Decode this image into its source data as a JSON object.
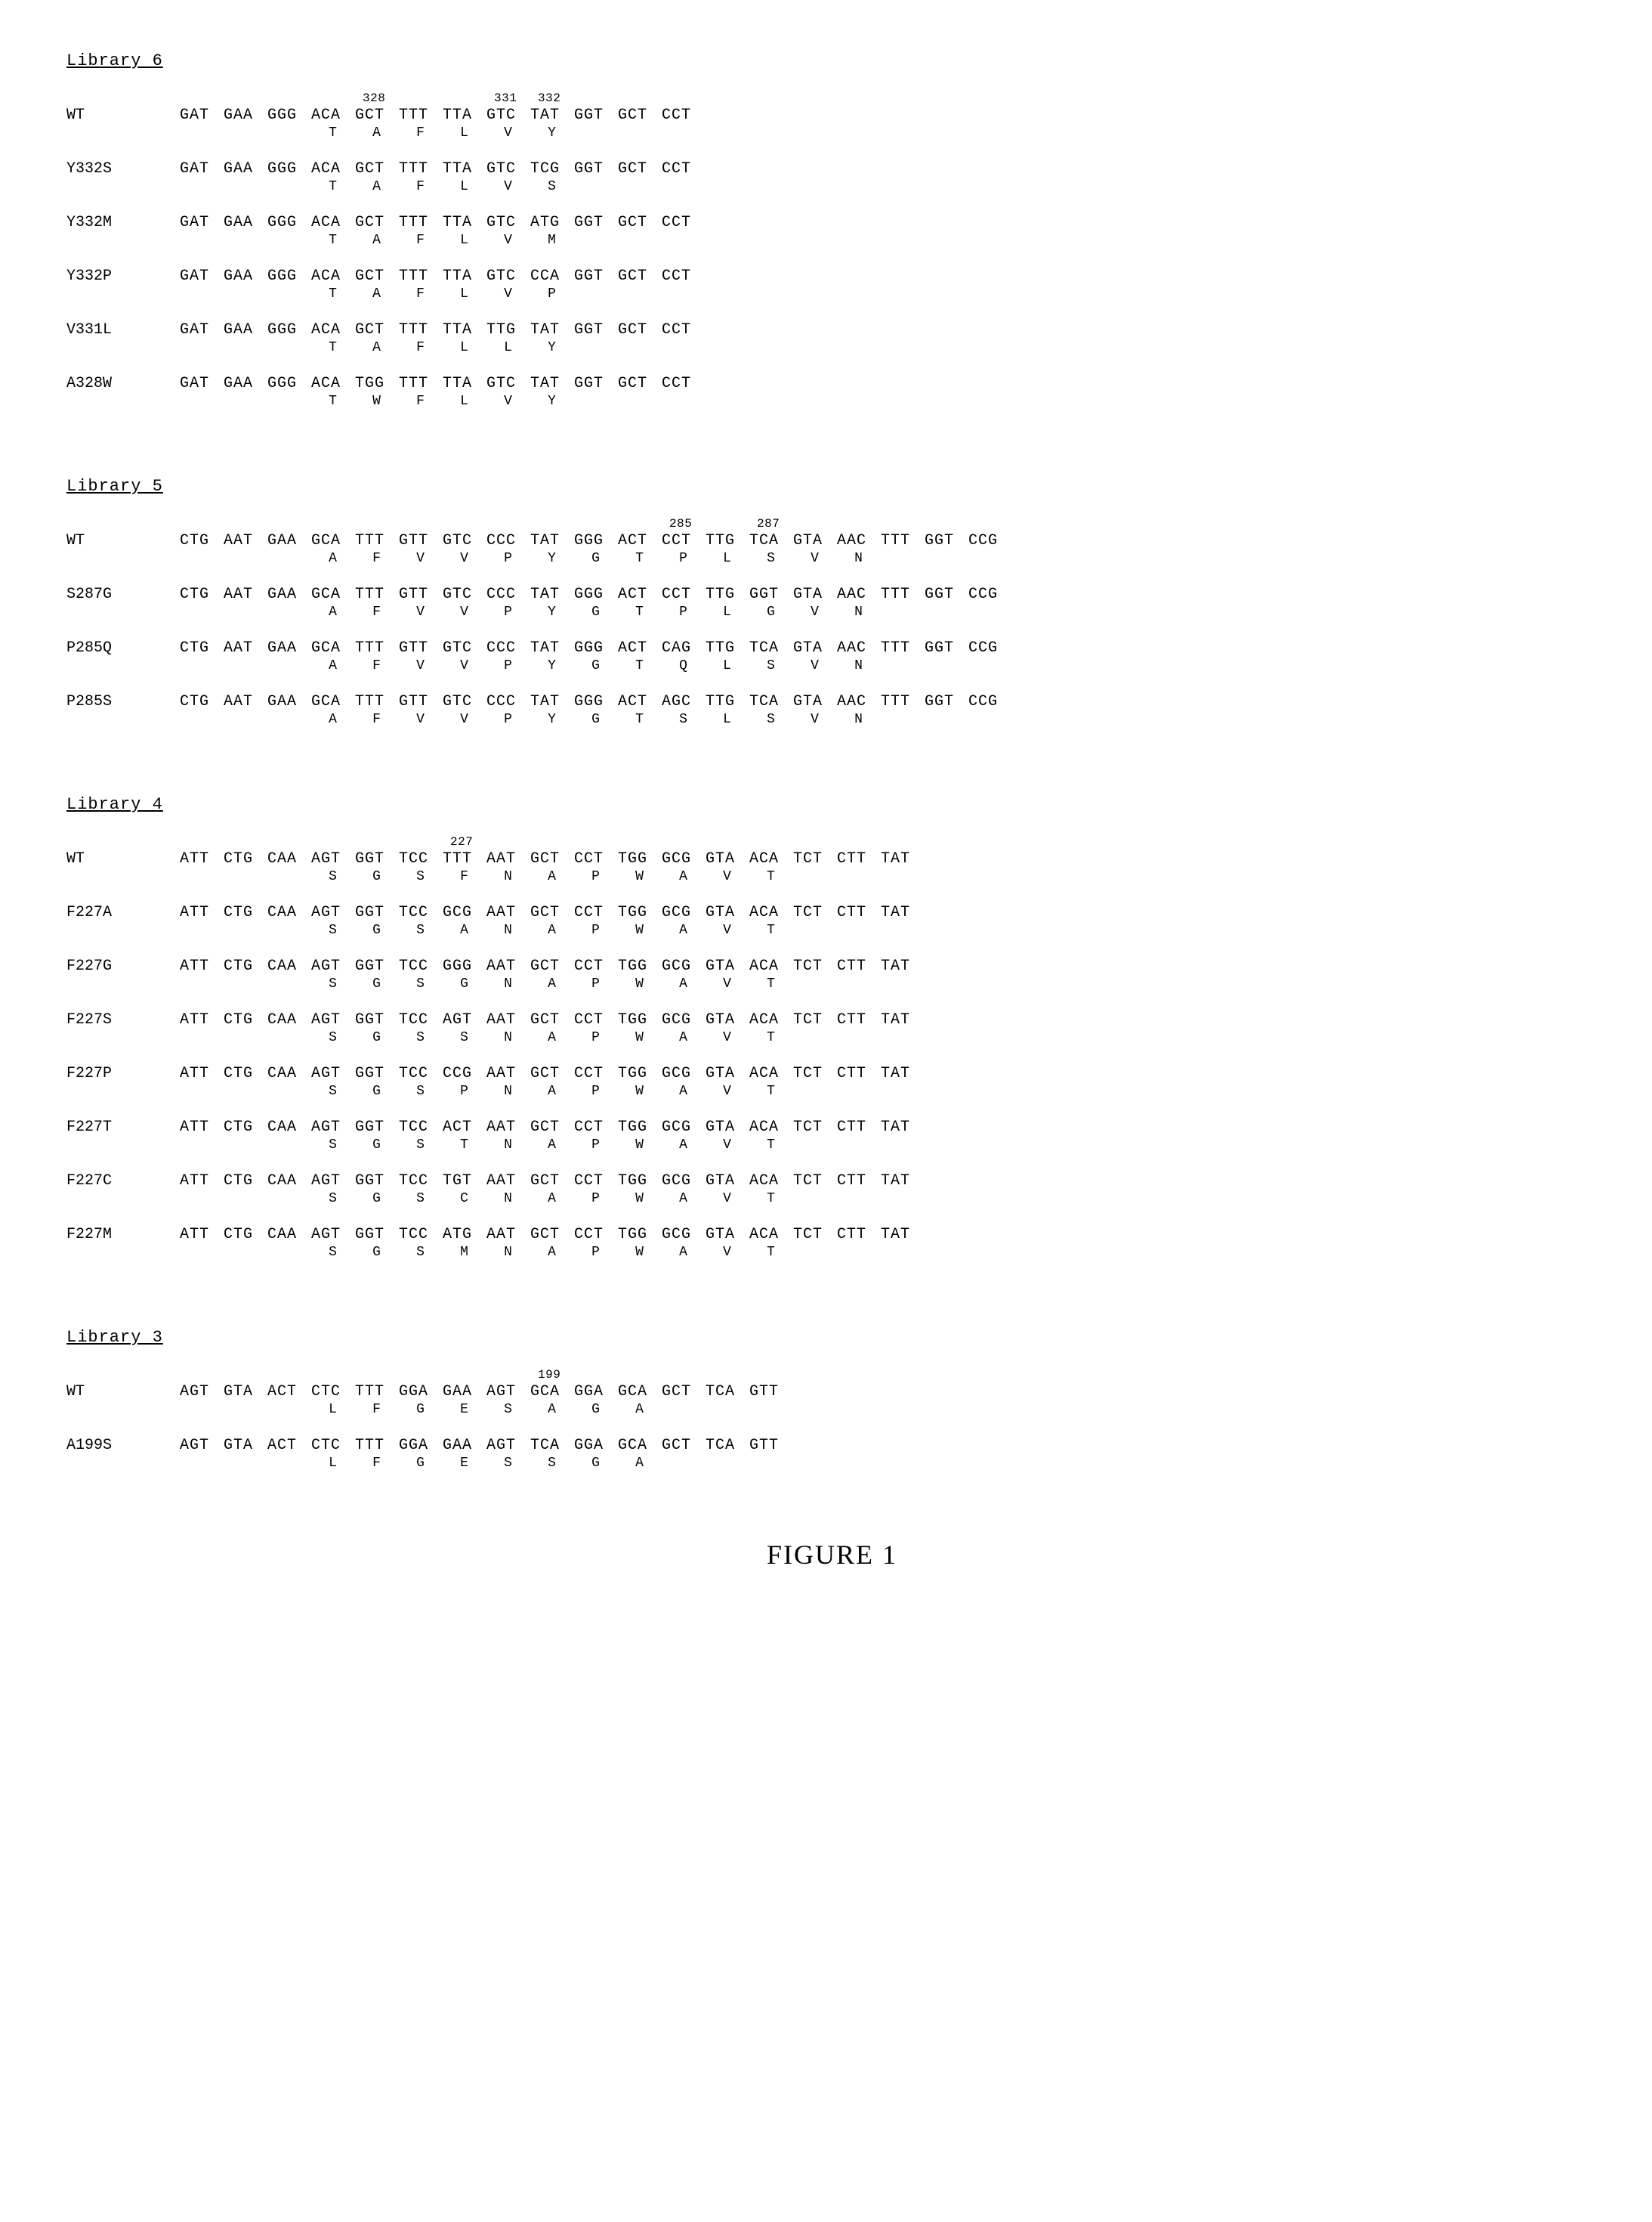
{
  "figure_caption": "FIGURE 1",
  "libraries": [
    {
      "title": "Library 6",
      "position_marks": [
        {
          "label": "328",
          "codon_index": 4
        },
        {
          "label": "331",
          "codon_index": 7
        },
        {
          "label": "332",
          "codon_index": 8
        }
      ],
      "aa_start_index": 3,
      "entries": [
        {
          "label": "WT",
          "codons": [
            "GAT",
            "GAA",
            "GGG",
            "ACA",
            "GCT",
            "TTT",
            "TTA",
            "GTC",
            "TAT",
            "GGT",
            "GCT",
            "CCT"
          ],
          "aas": [
            "T",
            "A",
            "F",
            "L",
            "V",
            "Y"
          ]
        },
        {
          "label": "Y332S",
          "codons": [
            "GAT",
            "GAA",
            "GGG",
            "ACA",
            "GCT",
            "TTT",
            "TTA",
            "GTC",
            "TCG",
            "GGT",
            "GCT",
            "CCT"
          ],
          "aas": [
            "T",
            "A",
            "F",
            "L",
            "V",
            "S"
          ]
        },
        {
          "label": "Y332M",
          "codons": [
            "GAT",
            "GAA",
            "GGG",
            "ACA",
            "GCT",
            "TTT",
            "TTA",
            "GTC",
            "ATG",
            "GGT",
            "GCT",
            "CCT"
          ],
          "aas": [
            "T",
            "A",
            "F",
            "L",
            "V",
            "M"
          ]
        },
        {
          "label": "Y332P",
          "codons": [
            "GAT",
            "GAA",
            "GGG",
            "ACA",
            "GCT",
            "TTT",
            "TTA",
            "GTC",
            "CCA",
            "GGT",
            "GCT",
            "CCT"
          ],
          "aas": [
            "T",
            "A",
            "F",
            "L",
            "V",
            "P"
          ]
        },
        {
          "label": "V331L",
          "codons": [
            "GAT",
            "GAA",
            "GGG",
            "ACA",
            "GCT",
            "TTT",
            "TTA",
            "TTG",
            "TAT",
            "GGT",
            "GCT",
            "CCT"
          ],
          "aas": [
            "T",
            "A",
            "F",
            "L",
            "L",
            "Y"
          ]
        },
        {
          "label": "A328W",
          "codons": [
            "GAT",
            "GAA",
            "GGG",
            "ACA",
            "TGG",
            "TTT",
            "TTA",
            "GTC",
            "TAT",
            "GGT",
            "GCT",
            "CCT"
          ],
          "aas": [
            "T",
            "W",
            "F",
            "L",
            "V",
            "Y"
          ]
        }
      ]
    },
    {
      "title": "Library 5",
      "position_marks": [
        {
          "label": "285",
          "codon_index": 11
        },
        {
          "label": "287",
          "codon_index": 13
        }
      ],
      "aa_start_index": 3,
      "entries": [
        {
          "label": "WT",
          "codons": [
            "CTG",
            "AAT",
            "GAA",
            "GCA",
            "TTT",
            "GTT",
            "GTC",
            "CCC",
            "TAT",
            "GGG",
            "ACT",
            "CCT",
            "TTG",
            "TCA",
            "GTA",
            "AAC",
            "TTT",
            "GGT",
            "CCG"
          ],
          "aas": [
            "A",
            "F",
            "V",
            "V",
            "P",
            "Y",
            "G",
            "T",
            "P",
            "L",
            "S",
            "V",
            "N"
          ]
        },
        {
          "label": "S287G",
          "codons": [
            "CTG",
            "AAT",
            "GAA",
            "GCA",
            "TTT",
            "GTT",
            "GTC",
            "CCC",
            "TAT",
            "GGG",
            "ACT",
            "CCT",
            "TTG",
            "GGT",
            "GTA",
            "AAC",
            "TTT",
            "GGT",
            "CCG"
          ],
          "aas": [
            "A",
            "F",
            "V",
            "V",
            "P",
            "Y",
            "G",
            "T",
            "P",
            "L",
            "G",
            "V",
            "N"
          ]
        },
        {
          "label": "P285Q",
          "codons": [
            "CTG",
            "AAT",
            "GAA",
            "GCA",
            "TTT",
            "GTT",
            "GTC",
            "CCC",
            "TAT",
            "GGG",
            "ACT",
            "CAG",
            "TTG",
            "TCA",
            "GTA",
            "AAC",
            "TTT",
            "GGT",
            "CCG"
          ],
          "aas": [
            "A",
            "F",
            "V",
            "V",
            "P",
            "Y",
            "G",
            "T",
            "Q",
            "L",
            "S",
            "V",
            "N"
          ]
        },
        {
          "label": "P285S",
          "codons": [
            "CTG",
            "AAT",
            "GAA",
            "GCA",
            "TTT",
            "GTT",
            "GTC",
            "CCC",
            "TAT",
            "GGG",
            "ACT",
            "AGC",
            "TTG",
            "TCA",
            "GTA",
            "AAC",
            "TTT",
            "GGT",
            "CCG"
          ],
          "aas": [
            "A",
            "F",
            "V",
            "V",
            "P",
            "Y",
            "G",
            "T",
            "S",
            "L",
            "S",
            "V",
            "N"
          ]
        }
      ]
    },
    {
      "title": "Library 4",
      "position_marks": [
        {
          "label": "227",
          "codon_index": 6
        }
      ],
      "aa_start_index": 3,
      "entries": [
        {
          "label": "WT",
          "codons": [
            "ATT",
            "CTG",
            "CAA",
            "AGT",
            "GGT",
            "TCC",
            "TTT",
            "AAT",
            "GCT",
            "CCT",
            "TGG",
            "GCG",
            "GTA",
            "ACA",
            "TCT",
            "CTT",
            "TAT"
          ],
          "aas": [
            "S",
            "G",
            "S",
            "F",
            "N",
            "A",
            "P",
            "W",
            "A",
            "V",
            "T"
          ]
        },
        {
          "label": "F227A",
          "codons": [
            "ATT",
            "CTG",
            "CAA",
            "AGT",
            "GGT",
            "TCC",
            "GCG",
            "AAT",
            "GCT",
            "CCT",
            "TGG",
            "GCG",
            "GTA",
            "ACA",
            "TCT",
            "CTT",
            "TAT"
          ],
          "aas": [
            "S",
            "G",
            "S",
            "A",
            "N",
            "A",
            "P",
            "W",
            "A",
            "V",
            "T"
          ]
        },
        {
          "label": "F227G",
          "codons": [
            "ATT",
            "CTG",
            "CAA",
            "AGT",
            "GGT",
            "TCC",
            "GGG",
            "AAT",
            "GCT",
            "CCT",
            "TGG",
            "GCG",
            "GTA",
            "ACA",
            "TCT",
            "CTT",
            "TAT"
          ],
          "aas": [
            "S",
            "G",
            "S",
            "G",
            "N",
            "A",
            "P",
            "W",
            "A",
            "V",
            "T"
          ]
        },
        {
          "label": "F227S",
          "codons": [
            "ATT",
            "CTG",
            "CAA",
            "AGT",
            "GGT",
            "TCC",
            "AGT",
            "AAT",
            "GCT",
            "CCT",
            "TGG",
            "GCG",
            "GTA",
            "ACA",
            "TCT",
            "CTT",
            "TAT"
          ],
          "aas": [
            "S",
            "G",
            "S",
            "S",
            "N",
            "A",
            "P",
            "W",
            "A",
            "V",
            "T"
          ]
        },
        {
          "label": "F227P",
          "codons": [
            "ATT",
            "CTG",
            "CAA",
            "AGT",
            "GGT",
            "TCC",
            "CCG",
            "AAT",
            "GCT",
            "CCT",
            "TGG",
            "GCG",
            "GTA",
            "ACA",
            "TCT",
            "CTT",
            "TAT"
          ],
          "aas": [
            "S",
            "G",
            "S",
            "P",
            "N",
            "A",
            "P",
            "W",
            "A",
            "V",
            "T"
          ]
        },
        {
          "label": "F227T",
          "codons": [
            "ATT",
            "CTG",
            "CAA",
            "AGT",
            "GGT",
            "TCC",
            "ACT",
            "AAT",
            "GCT",
            "CCT",
            "TGG",
            "GCG",
            "GTA",
            "ACA",
            "TCT",
            "CTT",
            "TAT"
          ],
          "aas": [
            "S",
            "G",
            "S",
            "T",
            "N",
            "A",
            "P",
            "W",
            "A",
            "V",
            "T"
          ]
        },
        {
          "label": "F227C",
          "codons": [
            "ATT",
            "CTG",
            "CAA",
            "AGT",
            "GGT",
            "TCC",
            "TGT",
            "AAT",
            "GCT",
            "CCT",
            "TGG",
            "GCG",
            "GTA",
            "ACA",
            "TCT",
            "CTT",
            "TAT"
          ],
          "aas": [
            "S",
            "G",
            "S",
            "C",
            "N",
            "A",
            "P",
            "W",
            "A",
            "V",
            "T"
          ]
        },
        {
          "label": "F227M",
          "codons": [
            "ATT",
            "CTG",
            "CAA",
            "AGT",
            "GGT",
            "TCC",
            "ATG",
            "AAT",
            "GCT",
            "CCT",
            "TGG",
            "GCG",
            "GTA",
            "ACA",
            "TCT",
            "CTT",
            "TAT"
          ],
          "aas": [
            "S",
            "G",
            "S",
            "M",
            "N",
            "A",
            "P",
            "W",
            "A",
            "V",
            "T"
          ]
        }
      ]
    },
    {
      "title": "Library 3",
      "position_marks": [
        {
          "label": "199",
          "codon_index": 8
        }
      ],
      "aa_start_index": 3,
      "entries": [
        {
          "label": "WT",
          "codons": [
            "AGT",
            "GTA",
            "ACT",
            "CTC",
            "TTT",
            "GGA",
            "GAA",
            "AGT",
            "GCA",
            "GGA",
            "GCA",
            "GCT",
            "TCA",
            "GTT"
          ],
          "aas": [
            "L",
            "F",
            "G",
            "E",
            "S",
            "A",
            "G",
            "A"
          ]
        },
        {
          "label": "A199S",
          "codons": [
            "AGT",
            "GTA",
            "ACT",
            "CTC",
            "TTT",
            "GGA",
            "GAA",
            "AGT",
            "TCA",
            "GGA",
            "GCA",
            "GCT",
            "TCA",
            "GTT"
          ],
          "aas": [
            "L",
            "F",
            "G",
            "E",
            "S",
            "S",
            "G",
            "A"
          ]
        }
      ]
    }
  ]
}
